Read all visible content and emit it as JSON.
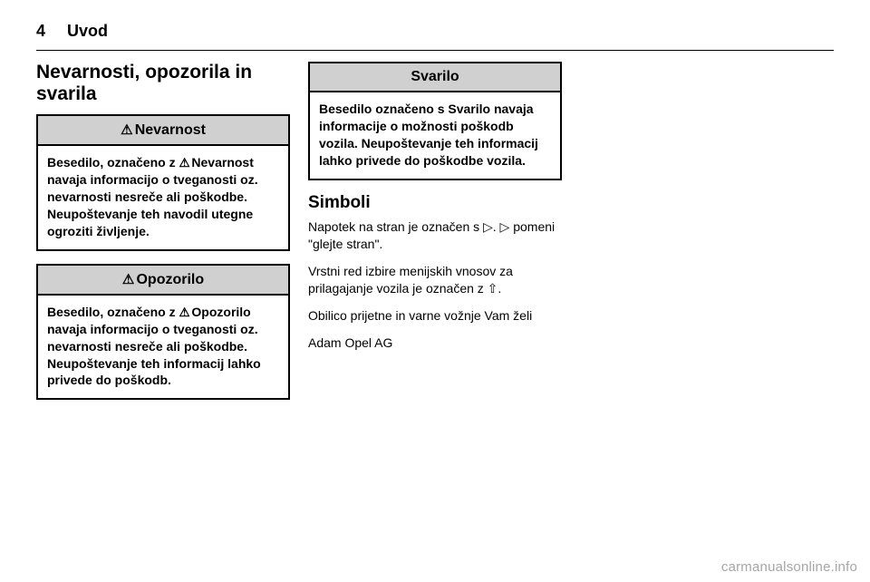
{
  "header": {
    "page_number": "4",
    "chapter": "Uvod"
  },
  "col1": {
    "section_title": "Nevarnosti, opozorila in svarila",
    "danger_box": {
      "head": "Nevarnost",
      "body_prefix": "Besedilo, označeno z ",
      "body_keyword": "Nevarnost",
      "body_suffix": " navaja informacijo o tveganosti oz. nevarnosti nesreče ali poškodbe. Neupoštevanje teh navodil utegne ogroziti življenje."
    },
    "warning_box": {
      "head": "Opozorilo",
      "body_prefix": "Besedilo, označeno z ",
      "body_keyword": "Opozorilo",
      "body_suffix": " navaja informacijo o tveganosti oz. nevarnosti nesreče ali poškodbe. Neupoštevanje teh informacij lahko privede do poškodb."
    }
  },
  "col2": {
    "caution_box": {
      "head": "Svarilo",
      "body": "Besedilo označeno s Svarilo navaja informacije o možnosti poškodb vozila. Neupoštevanje teh informacij lahko privede do poškodbe vozila."
    },
    "symbols_title": "Simboli",
    "para1": "Napotek na stran je označen s ▷. ▷ pomeni \"glejte stran\".",
    "para2": "Vrstni red izbire menijskih vnosov za prilagajanje vozila je označen z ⇧.",
    "para3": "Obilico prijetne in varne vožnje Vam želi",
    "para4": "Adam Opel AG"
  },
  "footer": "carmanualsonline.info",
  "style": {
    "background_color": "#ffffff",
    "border_color": "#000000",
    "callout_head_bg": "#d0d0d0",
    "footer_color": "#a6a6a6"
  }
}
